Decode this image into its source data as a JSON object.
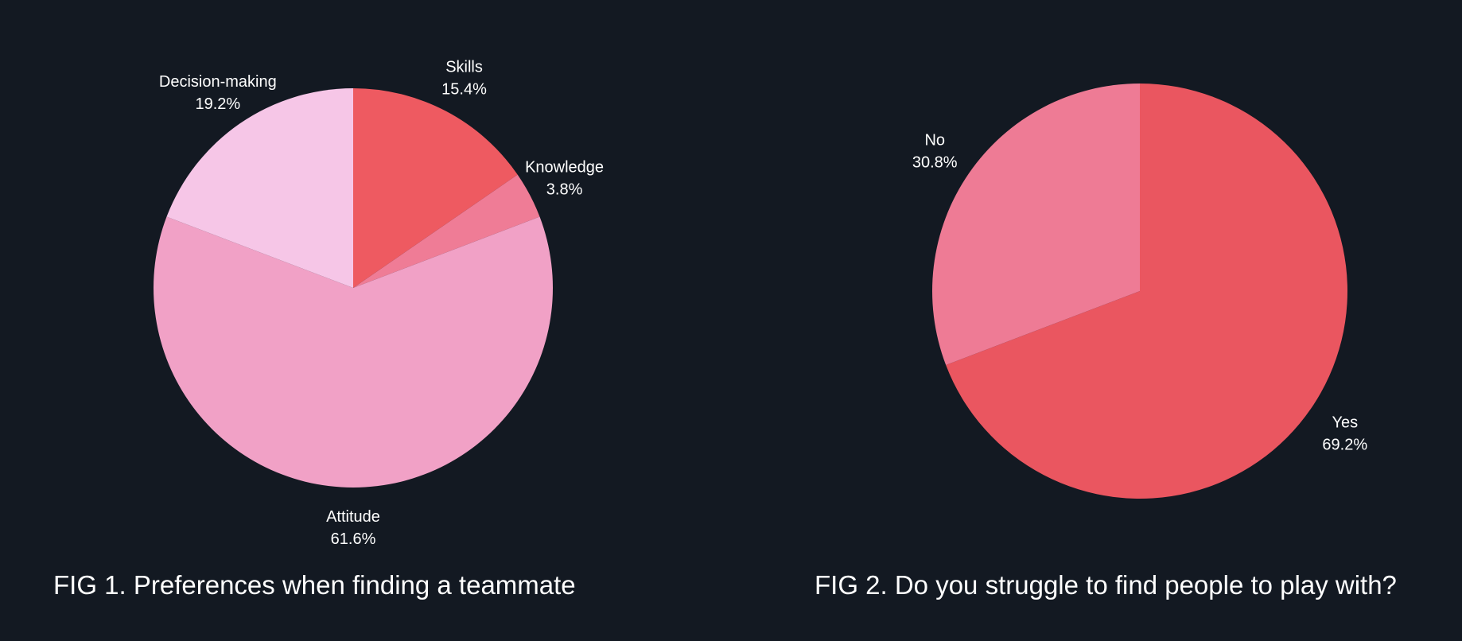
{
  "chart_data": [
    {
      "type": "pie",
      "title": "FIG 1. Preferences when finding a teammate",
      "start": "12 o'clock",
      "direction": "clockwise",
      "slices": [
        {
          "label": "Skills",
          "value": 15.4,
          "value_label": "15.4%",
          "color": "#ee5a61"
        },
        {
          "label": "Knowledge",
          "value": 3.8,
          "value_label": "3.8%",
          "color": "#ef7c96"
        },
        {
          "label": "Attitude",
          "value": 61.6,
          "value_label": "61.6%",
          "color": "#f1a1c6"
        },
        {
          "label": "Decision-making",
          "value": 19.2,
          "value_label": "19.2%",
          "color": "#f6c6e7"
        }
      ]
    },
    {
      "type": "pie",
      "title": "FIG 2. Do you struggle to find people to play with?",
      "start": "12 o'clock",
      "direction": "clockwise",
      "slices": [
        {
          "label": "Yes",
          "value": 69.2,
          "value_label": "69.2%",
          "color": "#ea5660"
        },
        {
          "label": "No",
          "value": 30.8,
          "value_label": "30.8%",
          "color": "#ee7b95"
        }
      ]
    }
  ],
  "colors": {
    "background": "#131922",
    "text": "#ffffff"
  }
}
